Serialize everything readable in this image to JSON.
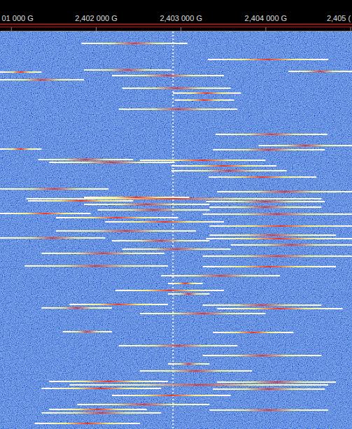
{
  "chart_data": {
    "type": "waterfall",
    "xlim": [
      2400.87,
      2405.02
    ],
    "xticks": [
      {
        "value": 2401,
        "label": "01 000 G"
      },
      {
        "value": 2402,
        "label": "2,402 000 G"
      },
      {
        "value": 2403,
        "label": "2,403 000 G"
      },
      {
        "value": 2404,
        "label": "2,404 000 G"
      },
      {
        "value": 2405,
        "label": "2,405 ("
      }
    ],
    "ylim": [
      0,
      568
    ],
    "tick_labels": "x",
    "color": "#ffffff",
    "dc_spike": 2402.91,
    "bursts": {
      "row": [
        17,
        40,
        55,
        57,
        58,
        63,
        69,
        81,
        88,
        98,
        111,
        147,
        163,
        168,
        169,
        183,
        184,
        187,
        192,
        199,
        208,
        225,
        229,
        237,
        239,
        242,
        243,
        247,
        251,
        255,
        260,
        261,
        266,
        272,
        278,
        285,
        291,
        295,
        296,
        299,
        305,
        311,
        317,
        321,
        335,
        336,
        349,
        360,
        370,
        375,
        390,
        391,
        395,
        396,
        403,
        429,
        430,
        449,
        463,
        475,
        485,
        500,
        501,
        505,
        510,
        511,
        520,
        533,
        540,
        541,
        545,
        560
      ],
      "start": [
        2401.83,
        2403.32,
        2401.86,
        2404.27,
        2400.87,
        2402.19,
        2400.87,
        2402.31,
        2402.91,
        2402.93,
        2402.27,
        2403.41,
        2403.92,
        2400.87,
        2403.38,
        2401.32,
        2402.52,
        2401.45,
        2402.89,
        2402.89,
        2403.33,
        2400.87,
        2403.43,
        2401.86,
        2401.18,
        2401.2,
        2403.3,
        2401.86,
        2403.34,
        2402.02,
        2400.87,
        2403.26,
        2401.53,
        2402.11,
        2403.34,
        2401.53,
        2403.34,
        2400.87,
        2403.3,
        2402.19,
        2403.59,
        2402.31,
        2401.36,
        2403.26,
        2401.16,
        2403.26,
        2402.77,
        2402.85,
        2402.23,
        2402.85,
        2401.69,
        2403.26,
        2401.36,
        2403.43,
        2402.52,
        2401.61,
        2403.38,
        2402.27,
        2403.26,
        2402.85,
        2402.52,
        2401.45,
        2403.43,
        2401.69,
        2401.36,
        2403.38,
        2402.19,
        2401.78,
        2401.45,
        2403.34,
        2401.36,
        2401.28
      ],
      "end": [
        2403.08,
        2404.74,
        2402.89,
        2405.02,
        2401.36,
        2403.51,
        2401.86,
        2403.59,
        2403.71,
        2403.63,
        2403.67,
        2404.73,
        2405.02,
        2401.36,
        2404.7,
        2402.44,
        2404.0,
        2402.93,
        2404.13,
        2404.25,
        2404.6,
        2402.15,
        2405.02,
        2403.1,
        2404.66,
        2402.44,
        2404.7,
        2403.34,
        2404.66,
        2403.34,
        2401.94,
        2405.02,
        2402.97,
        2403.51,
        2405.02,
        2403.18,
        2404.83,
        2402.11,
        2405.02,
        2403.34,
        2405.02,
        2403.59,
        2402.81,
        2405.02,
        2402.85,
        2404.83,
        2404.17,
        2403.26,
        2403.51,
        2403.34,
        2402.85,
        2404.66,
        2402.19,
        2404.91,
        2404.0,
        2402.19,
        2404.33,
        2403.67,
        2404.66,
        2403.34,
        2403.84,
        2402.85,
        2404.83,
        2404.74,
        2402.77,
        2404.7,
        2403.59,
        2403.34,
        2402.6,
        2404.74,
        2402.77,
        2402.52
      ]
    }
  }
}
